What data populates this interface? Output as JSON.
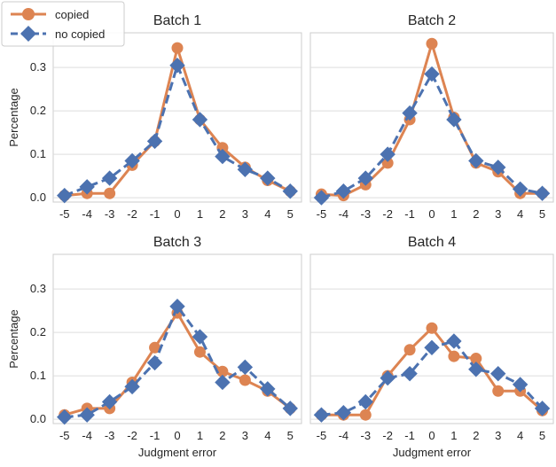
{
  "chart_data": {
    "type": "line",
    "x": [
      -5,
      -4,
      -3,
      -2,
      -1,
      0,
      1,
      2,
      3,
      4,
      5
    ],
    "tick_labels_x": [
      "-5",
      "-4",
      "-3",
      "-2",
      "-1",
      "0",
      "1",
      "2",
      "3",
      "4",
      "5"
    ],
    "tick_labels_y": [
      "0.0",
      "0.1",
      "0.2",
      "0.3"
    ],
    "y_ticks": [
      0.0,
      0.1,
      0.2,
      0.3
    ],
    "ylim": [
      -0.01,
      0.38
    ],
    "xlabel": "Judgment error",
    "ylabel": "Percentage",
    "grid": "horizontal",
    "legend": {
      "placement": "top-left",
      "entries": [
        {
          "name": "copied",
          "color": "#dd8452",
          "marker": "circle",
          "line": "solid"
        },
        {
          "name": "no copied",
          "color": "#4c72b0",
          "marker": "diamond",
          "line": "dashed"
        }
      ]
    },
    "panels": [
      {
        "title": "Batch 1",
        "series": [
          {
            "name": "copied",
            "values": [
              0.005,
              0.01,
              0.01,
              0.075,
              0.13,
              0.345,
              0.18,
              0.115,
              0.07,
              0.04,
              0.015
            ]
          },
          {
            "name": "no copied",
            "values": [
              0.005,
              0.025,
              0.045,
              0.085,
              0.13,
              0.305,
              0.18,
              0.095,
              0.065,
              0.045,
              0.015
            ]
          }
        ]
      },
      {
        "title": "Batch 2",
        "series": [
          {
            "name": "copied",
            "values": [
              0.008,
              0.005,
              0.03,
              0.08,
              0.18,
              0.355,
              0.185,
              0.08,
              0.06,
              0.01,
              0.01
            ]
          },
          {
            "name": "no copied",
            "values": [
              0.0,
              0.015,
              0.045,
              0.1,
              0.195,
              0.285,
              0.18,
              0.085,
              0.07,
              0.02,
              0.01
            ]
          }
        ]
      },
      {
        "title": "Batch 3",
        "series": [
          {
            "name": "copied",
            "values": [
              0.01,
              0.025,
              0.025,
              0.085,
              0.165,
              0.245,
              0.155,
              0.11,
              0.09,
              0.065,
              0.025
            ]
          },
          {
            "name": "no copied",
            "values": [
              0.005,
              0.01,
              0.04,
              0.075,
              0.13,
              0.26,
              0.19,
              0.085,
              0.12,
              0.07,
              0.025
            ]
          }
        ]
      },
      {
        "title": "Batch 4",
        "series": [
          {
            "name": "copied",
            "values": [
              0.01,
              0.01,
              0.01,
              0.1,
              0.16,
              0.21,
              0.145,
              0.14,
              0.065,
              0.065,
              0.02
            ]
          },
          {
            "name": "no copied",
            "values": [
              0.01,
              0.015,
              0.04,
              0.095,
              0.105,
              0.165,
              0.18,
              0.115,
              0.105,
              0.08,
              0.025
            ]
          }
        ]
      }
    ]
  }
}
